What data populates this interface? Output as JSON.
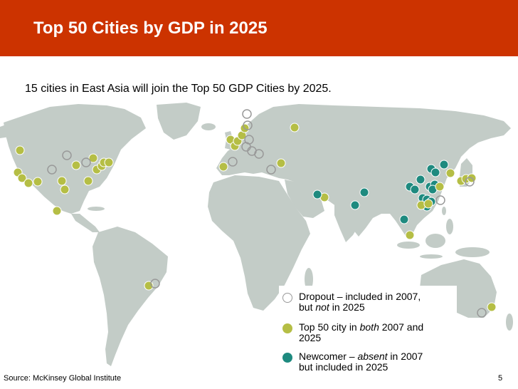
{
  "header": {
    "title": "Top 50 Cities by GDP in 2025",
    "background_color": "#cc3300"
  },
  "subtitle": "15 cities in East Asia will join the Top 50 GDP Cities by 2025.",
  "map": {
    "land_color": "#c3ccc7",
    "background": "world map (land masses)"
  },
  "legend": {
    "items": [
      {
        "kind": "dropout",
        "line1": "Dropout – included in 2007,",
        "line2_pre": "but ",
        "line2_em": "not",
        "line2_post": " in 2025",
        "marker_style": "hollow",
        "color": "#999999"
      },
      {
        "kind": "top50",
        "line1_pre": "Top 50 city in ",
        "line1_em": "both",
        "line1_post": " 2007 and",
        "line2": "2025",
        "marker_style": "filled",
        "color": "#b5be45"
      },
      {
        "kind": "newcomer",
        "line1_pre": "Newcomer – ",
        "line1_em": "absent",
        "line1_post": " in 2007",
        "line2": "but included in 2025",
        "marker_style": "filled",
        "color": "#1e8a7f"
      }
    ]
  },
  "footer": {
    "source": "Source: McKinsey Global Institute",
    "page_number": "5"
  }
}
